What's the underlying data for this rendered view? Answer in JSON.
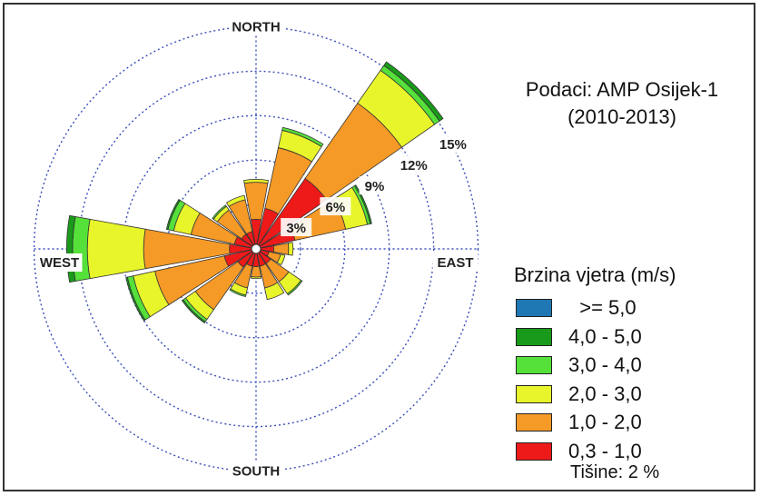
{
  "info": {
    "title": "Podaci: AMP Osijek-1",
    "period": "(2010-2013)",
    "calm": "Tišine: 2 %"
  },
  "legend": {
    "title": "Brzina vjetra (m/s)",
    "items": [
      {
        "label": ">= 5,0",
        "color": "#1f77b4"
      },
      {
        "label": "4,0 - 5,0",
        "color": "#1a9a1a"
      },
      {
        "label": "3,0 - 4,0",
        "color": "#55e03a"
      },
      {
        "label": "2,0 - 3,0",
        "color": "#e8f52a"
      },
      {
        "label": "1,0 - 2,0",
        "color": "#f59a26"
      },
      {
        "label": "0,3 - 1,0",
        "color": "#ee1a1a"
      }
    ]
  },
  "chart_data": {
    "type": "windrose",
    "directions": [
      "N",
      "NNE",
      "NE",
      "ENE",
      "E",
      "ESE",
      "SE",
      "SSE",
      "S",
      "SSW",
      "SW",
      "WSW",
      "W",
      "WNW",
      "NW",
      "NNW"
    ],
    "compass_labels": {
      "north": "NORTH",
      "east": "EAST",
      "south": "SOUTH",
      "west": "WEST"
    },
    "ring_labels": [
      "3%",
      "6%",
      "9%",
      "12%",
      "15%"
    ],
    "ring_values": [
      3,
      6,
      9,
      12,
      15
    ],
    "speed_bins": [
      "0,3 - 1,0",
      "1,0 - 2,0",
      "2,0 - 3,0",
      "3,0 - 4,0",
      "4,0 - 5,0",
      ">= 5,0"
    ],
    "series": [
      {
        "name": "0,3 - 1,0",
        "color": "#ee1a1a",
        "values": [
          2.0,
          2.8,
          5.8,
          2.7,
          1.2,
          0.9,
          1.2,
          1.2,
          1.2,
          1.2,
          1.5,
          2.2,
          1.8,
          1.5,
          1.2,
          1.2
        ]
      },
      {
        "name": "1,0 - 2,0",
        "color": "#f59a26",
        "values": [
          2.5,
          4.2,
          6.2,
          3.5,
          1.0,
          0.8,
          1.5,
          1.5,
          0.7,
          1.5,
          3.5,
          4.8,
          5.8,
          3.0,
          2.0,
          2.2
        ]
      },
      {
        "name": "2,0 - 3,0",
        "color": "#e8f52a",
        "values": [
          0.2,
          1.2,
          2.7,
          1.5,
          0.3,
          0.3,
          1.0,
          0.8,
          0.1,
          0.5,
          0.8,
          1.5,
          3.8,
          1.2,
          0.3,
          0.3
        ]
      },
      {
        "name": "3,0 - 4,0",
        "color": "#55e03a",
        "values": [
          0.0,
          0.2,
          0.4,
          0.2,
          0.0,
          0.0,
          0.1,
          0.0,
          0.0,
          0.1,
          0.2,
          0.4,
          1.0,
          0.4,
          0.1,
          0.0
        ]
      },
      {
        "name": "4,0 - 5,0",
        "color": "#1a9a1a",
        "values": [
          0.0,
          0.0,
          0.3,
          0.1,
          0.0,
          0.0,
          0.0,
          0.0,
          0.0,
          0.0,
          0.1,
          0.1,
          0.4,
          0.1,
          0.0,
          0.0
        ]
      },
      {
        "name": ">= 5,0",
        "color": "#1f77b4",
        "values": [
          0.0,
          0.0,
          0.0,
          0.0,
          0.0,
          0.0,
          0.0,
          0.0,
          0.0,
          0.0,
          0.0,
          0.0,
          0.0,
          0.0,
          0.0,
          0.0
        ]
      }
    ]
  }
}
